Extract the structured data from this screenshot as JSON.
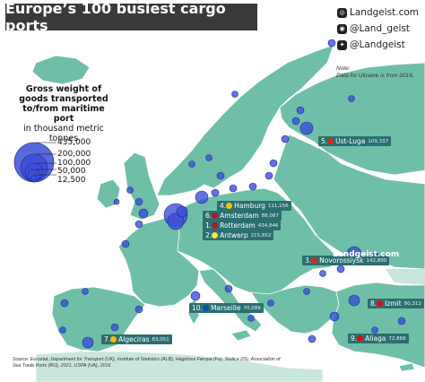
{
  "title": "Europe’s 100 busiest cargo ports",
  "social": {
    "website": "Landgeist.com",
    "instagram": "@Land_geist",
    "twitter": "@Landgeist"
  },
  "note": {
    "heading": "Note:",
    "text": "Data for Ukraine is from 2016."
  },
  "legend": {
    "title": "Gross weight of goods transported to/from maritime port",
    "unit": "in thousand metric tonnes",
    "values": [
      "435,000",
      "200,000",
      "100,000",
      "50,000",
      "12,500"
    ]
  },
  "ports": [
    {
      "rank": "1.",
      "name": "Rotterdam",
      "value": "434,846",
      "flag": "NL"
    },
    {
      "rank": "2.",
      "name": "Antwerp",
      "value": "215,852",
      "flag": "BE"
    },
    {
      "rank": "3.",
      "name": "Novorossiysk",
      "value": "142,800",
      "flag": "RU"
    },
    {
      "rank": "4.",
      "name": "Hamburg",
      "value": "111,156",
      "flag": "DE"
    },
    {
      "rank": "5.",
      "name": "Ust-Luga",
      "value": "109,337",
      "flag": "RU"
    },
    {
      "rank": "6.",
      "name": "Amsterdam",
      "value": "88,087",
      "flag": "NL"
    },
    {
      "rank": "7.",
      "name": "Algeciras",
      "value": "83,051",
      "flag": "ES"
    },
    {
      "rank": "8.",
      "name": "Izmit",
      "value": "80,312",
      "flag": "TR"
    },
    {
      "rank": "9.",
      "name": "Aliaga",
      "value": "72,868",
      "flag": "TR"
    },
    {
      "rank": "10.",
      "name": "Marseille",
      "value": "70,089",
      "flag": "FR"
    }
  ],
  "source": "Source: Eurostat, Department for Transport (UK), Institute of Statistics (ALB), Hagstova Føroya (Fo), Statice (IS), Association of Sea Trade Ports (RU), 2021, USPA (UA), 2016",
  "colors": {
    "sea": "#ffffff",
    "land": "#6fbfa8",
    "land_nodata": "#c9e6dc",
    "bubble": "#3b4fd6",
    "label_bg": "#2b6f71",
    "title_bg": "#3a3a3a"
  }
}
